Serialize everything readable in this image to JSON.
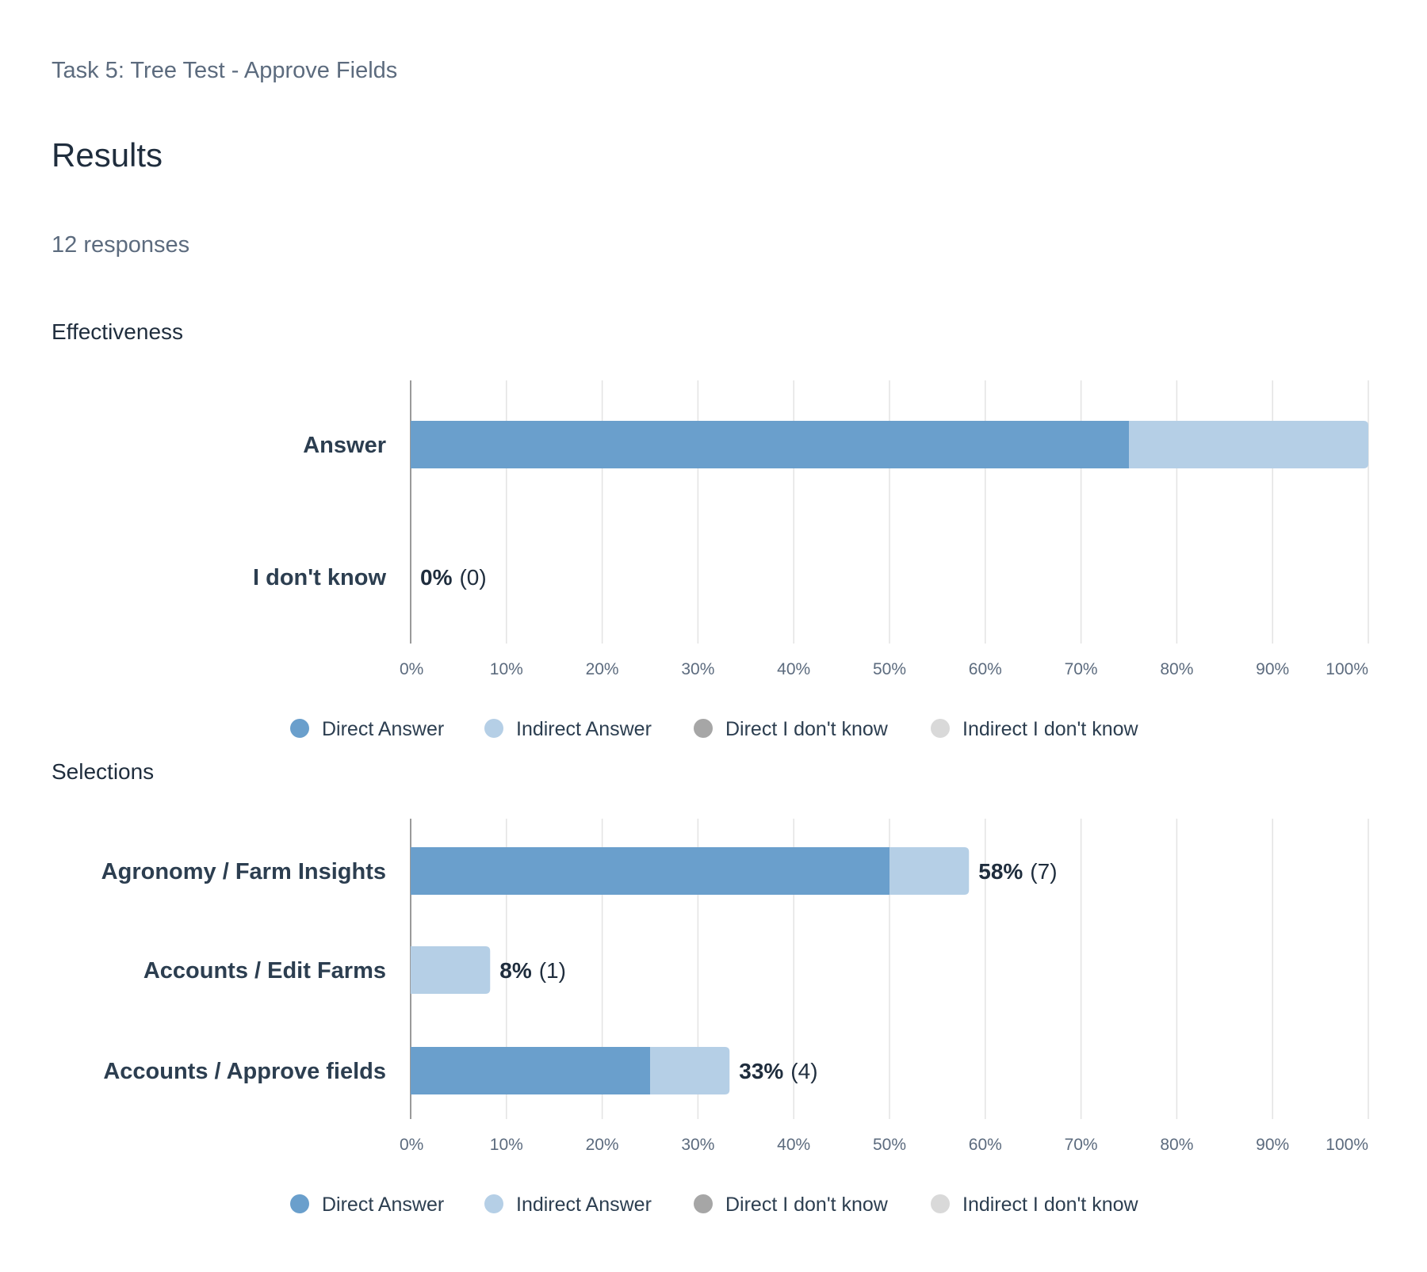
{
  "header": {
    "task_title": "Task 5: Tree Test - Approve Fields",
    "heading": "Results",
    "responses": "12 responses"
  },
  "colors": {
    "direct_answer": "#6a9fcc",
    "indirect_answer": "#b5cfe6",
    "direct_dont_know": "#a6a6a6",
    "indirect_dont_know": "#d9d9d9",
    "grid": "#e3e3e3",
    "axis": "#9a9a9a"
  },
  "chart_data": [
    {
      "type": "bar",
      "orientation": "horizontal",
      "stacked": true,
      "title": "Effectiveness",
      "categories": [
        "Answer",
        "I don't know"
      ],
      "series": [
        {
          "name": "Direct Answer",
          "values": [
            75,
            0
          ]
        },
        {
          "name": "Indirect Answer",
          "values": [
            25,
            0
          ]
        },
        {
          "name": "Direct I don't know",
          "values": [
            0,
            0
          ]
        },
        {
          "name": "Indirect I don't know",
          "values": [
            0,
            0
          ]
        }
      ],
      "value_labels": [
        {
          "show": false,
          "pct": "",
          "count": ""
        },
        {
          "show": true,
          "pct": "0%",
          "count": "(0)"
        }
      ],
      "xlim": [
        0,
        100
      ],
      "xticks": [
        "0%",
        "10%",
        "20%",
        "30%",
        "40%",
        "50%",
        "60%",
        "70%",
        "80%",
        "90%",
        "100%"
      ],
      "grid": true,
      "legend_position": "bottom"
    },
    {
      "type": "bar",
      "orientation": "horizontal",
      "stacked": true,
      "title": "Selections",
      "categories": [
        "Agronomy / Farm Insights",
        "Accounts / Edit Farms",
        "Accounts / Approve fields"
      ],
      "series": [
        {
          "name": "Direct Answer",
          "values": [
            50,
            0,
            25
          ]
        },
        {
          "name": "Indirect Answer",
          "values": [
            8.3,
            8.3,
            8.3
          ]
        },
        {
          "name": "Direct I don't know",
          "values": [
            0,
            0,
            0
          ]
        },
        {
          "name": "Indirect I don't know",
          "values": [
            0,
            0,
            0
          ]
        }
      ],
      "value_labels": [
        {
          "show": true,
          "pct": "58%",
          "count": "(7)"
        },
        {
          "show": true,
          "pct": "8%",
          "count": "(1)"
        },
        {
          "show": true,
          "pct": "33%",
          "count": "(4)"
        }
      ],
      "xlim": [
        0,
        100
      ],
      "xticks": [
        "0%",
        "10%",
        "20%",
        "30%",
        "40%",
        "50%",
        "60%",
        "70%",
        "80%",
        "90%",
        "100%"
      ],
      "grid": true,
      "legend_position": "bottom"
    }
  ]
}
